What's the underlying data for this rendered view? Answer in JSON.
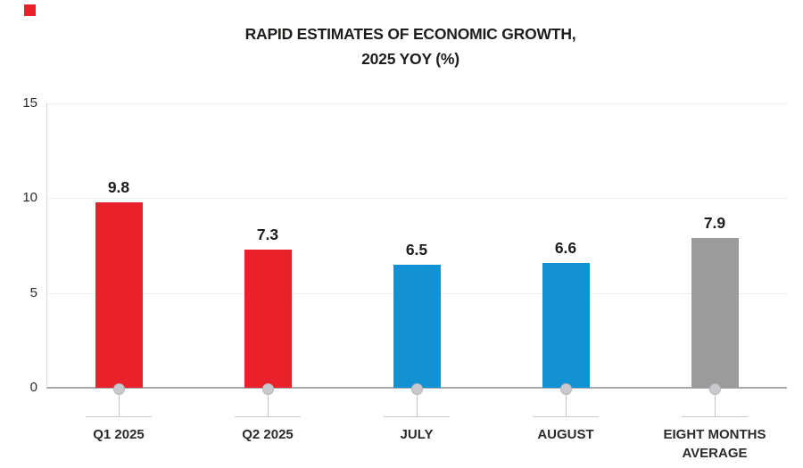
{
  "logo": {
    "color": "#e8212b"
  },
  "title": {
    "line1": "RAPID ESTIMATES OF ECONOMIC GROWTH,",
    "line2": "2025 YOY (%)"
  },
  "chart_data": {
    "type": "bar",
    "title": "RAPID ESTIMATES OF ECONOMIC GROWTH, 2025 YOY (%)",
    "categories": [
      "Q1 2025",
      "Q2 2025",
      "JULY",
      "AUGUST",
      "EIGHT MONTHS AVERAGE"
    ],
    "values": [
      9.8,
      7.3,
      6.5,
      6.6,
      7.9
    ],
    "value_labels": [
      "9.8",
      "7.3",
      "6.5",
      "6.6",
      "7.9"
    ],
    "bar_colors": [
      "#e8212b",
      "#e8212b",
      "#1292d3",
      "#1292d3",
      "#9b9b9b"
    ],
    "yticks": [
      0,
      5,
      10,
      15
    ],
    "ytick_labels": [
      "0",
      "5",
      "10",
      "15"
    ],
    "ylim": [
      0,
      15
    ],
    "xlabel": "",
    "ylabel": "",
    "grid": true,
    "legend": false,
    "colors": {
      "red": "#e8212b",
      "blue": "#1292d3",
      "gray": "#9b9b9b",
      "gridline": "#ededf0",
      "axis_line": "#d8d8db",
      "baseline": "#a9a9ad",
      "marker_fill": "#cacace",
      "marker_edge": "#b5b5b9",
      "connector": "#c9c9cc",
      "text_dark": "#1d1d1b",
      "text_label": "#2b2b2b"
    }
  }
}
